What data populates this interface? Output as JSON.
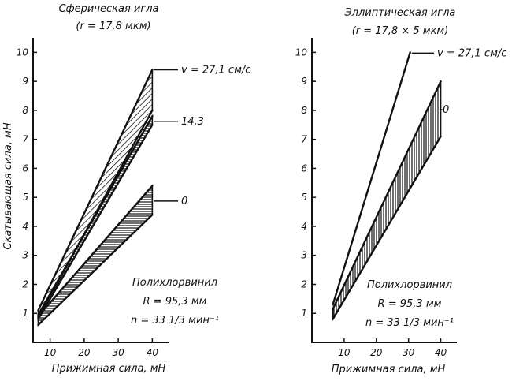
{
  "chart_data": [
    {
      "type": "area",
      "title": "Сферическая игла",
      "subtitle": "(r = 17,8 мкм)",
      "xlabel": "Прижимная сила, мН",
      "ylabel": "Скатывающая сила, мН",
      "xlim": [
        5,
        45
      ],
      "ylim": [
        0,
        10.5
      ],
      "xticks": [
        "10",
        "20",
        "30",
        "40"
      ],
      "yticks": [
        "1",
        "2",
        "3",
        "4",
        "5",
        "6",
        "7",
        "8",
        "9",
        "10"
      ],
      "series": [
        {
          "name": "v = 27,1 см/с",
          "x": [
            6.5,
            40
          ],
          "upper": [
            1.1,
            9.4
          ],
          "lower": [
            0.85,
            8.0
          ]
        },
        {
          "name": "14,3",
          "x": [
            6.5,
            40
          ],
          "upper": [
            0.95,
            7.8
          ],
          "lower": [
            0.8,
            7.5
          ]
        },
        {
          "name": "0",
          "x": [
            6.5,
            40
          ],
          "upper": [
            0.9,
            5.4
          ],
          "lower": [
            0.6,
            4.4
          ]
        }
      ],
      "annotation": [
        "Полихлорвинил",
        "R = 95,3 мм",
        "n = 33 1/3 мин⁻¹"
      ]
    },
    {
      "type": "area",
      "title": "Эллиптическая игла",
      "subtitle": "(r = 17,8 × 5 мкм)",
      "xlabel": "Прижимная сила, мН",
      "ylabel": "",
      "xlim": [
        0,
        45
      ],
      "ylim": [
        0,
        10.5
      ],
      "xticks": [
        "10",
        "20",
        "30",
        "40"
      ],
      "yticks": [
        "1",
        "2",
        "3",
        "4",
        "5",
        "6",
        "7",
        "8",
        "9",
        "10"
      ],
      "series": [
        {
          "name": "v = 27,1 см/с",
          "x": [
            6.5,
            30.5
          ],
          "upper": [
            1.3,
            10.0
          ],
          "lower": [
            1.3,
            10.0
          ]
        },
        {
          "name": "0",
          "x": [
            6.5,
            40
          ],
          "upper": [
            1.15,
            9.0
          ],
          "lower": [
            0.8,
            7.1
          ]
        }
      ],
      "annotation": [
        "Полихлорвинил",
        "R = 95,3 мм",
        "n = 33 1/3 мин⁻¹"
      ]
    }
  ]
}
